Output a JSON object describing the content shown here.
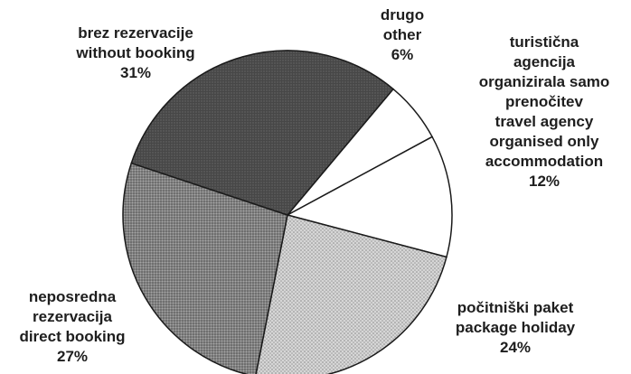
{
  "chart_data": {
    "type": "pie",
    "slices": [
      {
        "label_lines": [
          "drugo",
          "other"
        ],
        "value": 6,
        "value_text": "6%",
        "fill": "#ffffff"
      },
      {
        "label_lines": [
          "turistična",
          "agencija",
          "organizirala samo",
          "prenočitev",
          "travel agency",
          "organised only",
          "accommodation"
        ],
        "value": 12,
        "value_text": "12%",
        "fill": "#ffffff"
      },
      {
        "label_lines": [
          "počitniški paket",
          "package holiday"
        ],
        "value": 24,
        "value_text": "24%",
        "fill": "#c7c7c7"
      },
      {
        "label_lines": [
          "neposredna",
          "rezervacija",
          "direct booking"
        ],
        "value": 27,
        "value_text": "27%",
        "fill": "#7a7a7a"
      },
      {
        "label_lines": [
          "brez rezervacije",
          "without booking"
        ],
        "value": 31,
        "value_text": "31%",
        "fill": "#4a4a4a"
      }
    ],
    "start_direction": "clockwise from the upper-right, drugo/other first",
    "outline_color": "#1a1a1a"
  }
}
